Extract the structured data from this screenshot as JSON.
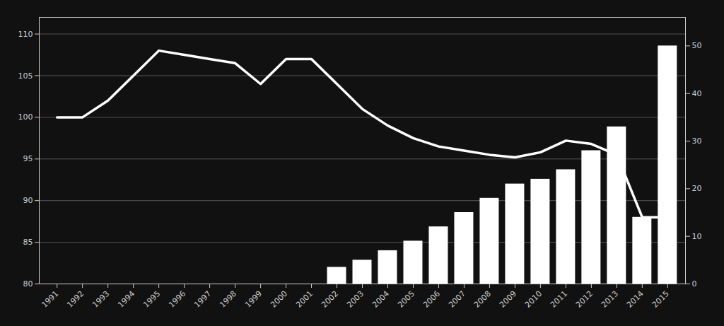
{
  "chart_data": {
    "type": "combo",
    "x": [
      1991,
      1992,
      1993,
      1994,
      1995,
      1996,
      1997,
      1998,
      1999,
      2000,
      2001,
      2002,
      2003,
      2004,
      2005,
      2006,
      2007,
      2008,
      2009,
      2010,
      2011,
      2012,
      2013,
      2014,
      2015
    ],
    "series": [
      {
        "type": "bar",
        "axis": "y2",
        "color": "#ffffff",
        "values": [
          null,
          null,
          null,
          null,
          null,
          null,
          null,
          null,
          null,
          null,
          null,
          3.5,
          5,
          7,
          9,
          12,
          15,
          18,
          21,
          22,
          24,
          28,
          33,
          14,
          50
        ]
      },
      {
        "type": "line",
        "color": "#ffffff",
        "values": [
          100,
          100,
          102,
          105,
          108,
          107.5,
          107,
          106.5,
          104,
          107,
          107,
          104,
          101,
          99,
          97.5,
          96.5,
          96,
          95.5,
          95.2,
          95.8,
          97.2,
          96.8,
          95.5,
          88,
          88
        ]
      }
    ],
    "xlim": [
      1990.3,
      2015.7
    ],
    "xticks": [
      1991,
      1992,
      1993,
      1994,
      1995,
      1996,
      1997,
      1998,
      1999,
      2000,
      2001,
      2002,
      2003,
      2004,
      2005,
      2006,
      2007,
      2008,
      2009,
      2010,
      2011,
      2012,
      2013,
      2014,
      2015
    ],
    "ylim": [
      80,
      112
    ],
    "yticks": [
      80,
      85,
      90,
      95,
      100,
      105,
      110
    ],
    "y2lim": [
      0,
      56
    ],
    "y2ticks": [
      0,
      10,
      20,
      30,
      40,
      50
    ],
    "grid": true
  }
}
